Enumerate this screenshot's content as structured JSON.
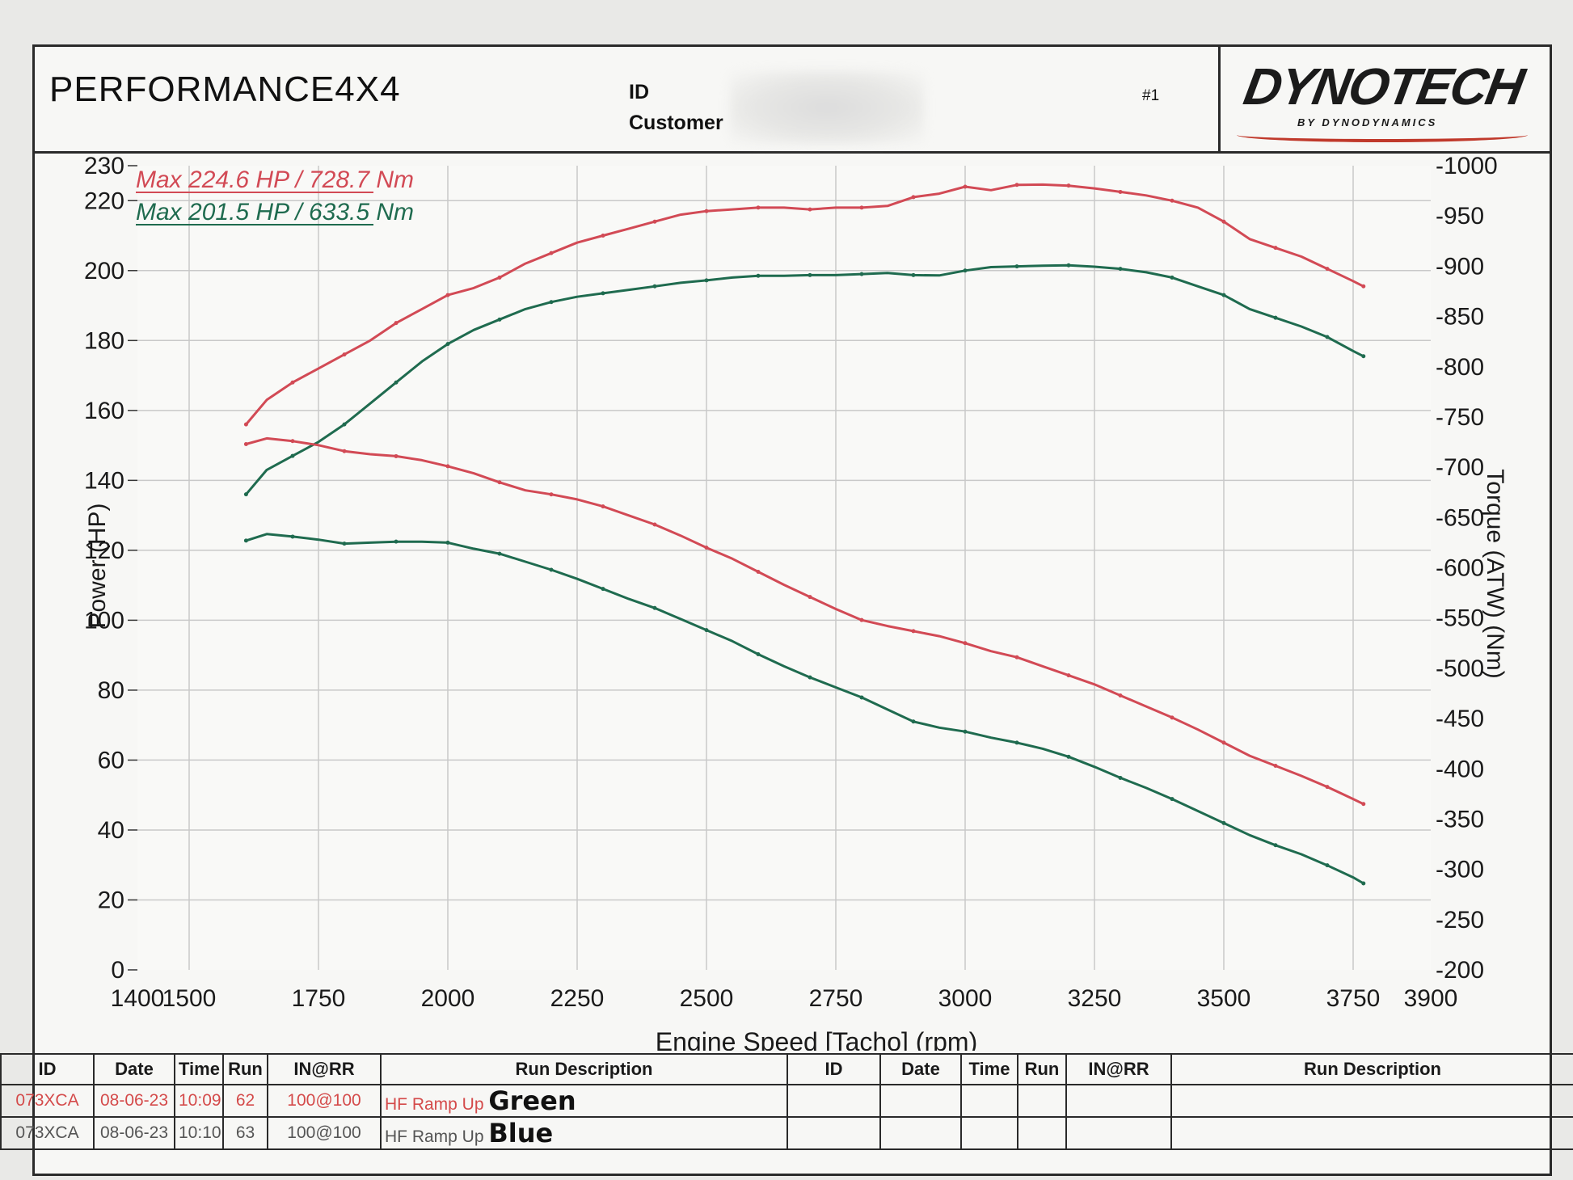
{
  "header": {
    "title": "PERFORMANCE4X4",
    "id_label": "ID",
    "customer_label": "Customer",
    "run_number": "#1",
    "logo_text": "DYNOTECH",
    "logo_sub": "BY DYNODYNAMICS"
  },
  "colors": {
    "red": "#d24a55",
    "green": "#1f6b4f",
    "grid": "#c9c9c9"
  },
  "chart_data": {
    "type": "line",
    "xlabel": "Engine Speed [Tacho] (rpm)",
    "ylabel_left": "Power (HP)",
    "ylabel_right": "Torque (ATW) (Nm)",
    "x_ticks": [
      "1400",
      "1500",
      "1750",
      "2000",
      "2250",
      "2500",
      "2750",
      "3000",
      "3250",
      "3500",
      "3750",
      "3900"
    ],
    "xlim": [
      1400,
      3900
    ],
    "y_left_ticks": [
      "0",
      "20",
      "40",
      "60",
      "80",
      "100",
      "120",
      "140",
      "160",
      "180",
      "200",
      "220",
      "230"
    ],
    "ylim_left": [
      0,
      230
    ],
    "y_right_ticks": [
      "-200",
      "-250",
      "-300",
      "-350",
      "-400",
      "-450",
      "-500",
      "-550",
      "-600",
      "-650",
      "-700",
      "-750",
      "-800",
      "-850",
      "-900",
      "-950",
      "-1000"
    ],
    "ylim_right": [
      200,
      1000
    ],
    "legend": [
      {
        "label": "Max 224.6 HP / 728.7 Nm",
        "color": "#d24a55"
      },
      {
        "label": "Max 201.5 HP / 633.5 Nm",
        "color": "#1f6b4f"
      }
    ],
    "series": [
      {
        "color": "#d24a55",
        "axis": "left",
        "kind": "power",
        "x": [
          1610,
          1650,
          1700,
          1750,
          1800,
          1850,
          1900,
          1950,
          2000,
          2050,
          2100,
          2150,
          2200,
          2250,
          2300,
          2350,
          2400,
          2450,
          2500,
          2550,
          2600,
          2650,
          2700,
          2750,
          2800,
          2850,
          2900,
          2950,
          3000,
          3050,
          3100,
          3150,
          3200,
          3250,
          3300,
          3350,
          3400,
          3450,
          3500,
          3550,
          3600,
          3650,
          3700,
          3750,
          3770
        ],
        "y": [
          156,
          163,
          168,
          172,
          176,
          180,
          185,
          189,
          193,
          195,
          198,
          202,
          205,
          208,
          210,
          212,
          214,
          216,
          217,
          217.5,
          218,
          218,
          217.5,
          218,
          218,
          218.5,
          221,
          222,
          224,
          223,
          224.5,
          224.6,
          224.3,
          223.5,
          222.5,
          221.5,
          220,
          218,
          214,
          209,
          206.5,
          204,
          200.5,
          197,
          195.5
        ]
      },
      {
        "color": "#1f6b4f",
        "axis": "left",
        "kind": "power",
        "x": [
          1610,
          1650,
          1700,
          1750,
          1800,
          1850,
          1900,
          1950,
          2000,
          2050,
          2100,
          2150,
          2200,
          2250,
          2300,
          2350,
          2400,
          2450,
          2500,
          2550,
          2600,
          2650,
          2700,
          2750,
          2800,
          2850,
          2900,
          2950,
          3000,
          3050,
          3100,
          3150,
          3200,
          3250,
          3300,
          3350,
          3400,
          3450,
          3500,
          3550,
          3600,
          3650,
          3700,
          3750,
          3770
        ],
        "y": [
          136,
          143,
          147,
          151,
          156,
          162,
          168,
          174,
          179,
          183,
          186,
          189,
          191,
          192.5,
          193.5,
          194.5,
          195.5,
          196.5,
          197.2,
          198,
          198.5,
          198.5,
          198.7,
          198.7,
          199,
          199.3,
          198.7,
          198.6,
          200,
          201,
          201.2,
          201.4,
          201.5,
          201.1,
          200.5,
          199.5,
          198,
          195.5,
          193,
          189,
          186.5,
          184,
          181,
          177,
          175.5
        ]
      },
      {
        "color": "#d24a55",
        "axis": "right",
        "kind": "torque",
        "x": [
          1610,
          1650,
          1700,
          1750,
          1800,
          1850,
          1900,
          1950,
          2000,
          2050,
          2100,
          2150,
          2200,
          2250,
          2300,
          2350,
          2400,
          2450,
          2500,
          2550,
          2600,
          2650,
          2700,
          2750,
          2800,
          2850,
          2900,
          2950,
          3000,
          3050,
          3100,
          3150,
          3200,
          3250,
          3300,
          3350,
          3400,
          3450,
          3500,
          3550,
          3600,
          3650,
          3700,
          3750,
          3770
        ],
        "y": [
          723,
          728.7,
          726,
          722,
          716,
          713,
          711,
          707,
          701,
          694,
          685,
          677,
          673,
          668,
          661,
          652,
          643,
          632,
          620,
          609,
          596,
          583,
          571,
          559,
          548,
          542,
          537,
          532,
          525,
          517,
          511,
          502,
          493,
          484,
          473,
          462,
          451,
          439,
          426,
          413,
          403,
          393,
          382,
          370,
          365
        ]
      },
      {
        "color": "#1f6b4f",
        "axis": "right",
        "kind": "torque",
        "x": [
          1610,
          1650,
          1700,
          1750,
          1800,
          1850,
          1900,
          1950,
          2000,
          2050,
          2100,
          2150,
          2200,
          2250,
          2300,
          2350,
          2400,
          2450,
          2500,
          2550,
          2600,
          2650,
          2700,
          2750,
          2800,
          2850,
          2900,
          2950,
          3000,
          3050,
          3100,
          3150,
          3200,
          3250,
          3300,
          3350,
          3400,
          3450,
          3500,
          3550,
          3600,
          3650,
          3700,
          3750,
          3770
        ],
        "y": [
          627,
          633.5,
          631,
          628,
          624,
          625,
          626,
          626,
          625,
          619,
          614,
          606,
          598,
          589,
          579,
          569,
          560,
          549,
          538,
          527,
          514,
          502,
          491,
          481,
          471,
          459,
          447,
          441,
          437,
          431,
          426,
          420,
          412,
          402,
          391,
          381,
          370,
          358,
          346,
          334,
          324,
          315,
          304,
          292,
          286
        ]
      }
    ]
  },
  "footer": {
    "headers_left": [
      "ID",
      "Date",
      "Time",
      "Run",
      "IN@RR",
      "Run Description"
    ],
    "headers_right": [
      "ID",
      "Date",
      "Time",
      "Run",
      "IN@RR",
      "Run Description"
    ],
    "rows": [
      {
        "id": "073XCA",
        "date": "08-06-23",
        "time": "10:09",
        "run": "62",
        "inrr": "100@100",
        "desc": "HF Ramp Up",
        "note": "Green"
      },
      {
        "id": "073XCA",
        "date": "08-06-23",
        "time": "10:10",
        "run": "63",
        "inrr": "100@100",
        "desc": "HF Ramp Up",
        "note": "Blue"
      }
    ]
  }
}
